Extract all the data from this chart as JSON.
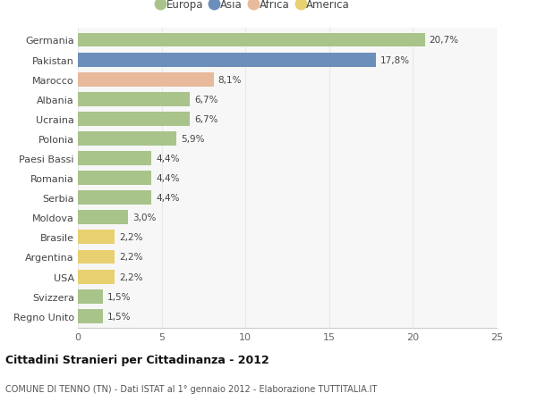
{
  "countries": [
    "Germania",
    "Pakistan",
    "Marocco",
    "Albania",
    "Ucraina",
    "Polonia",
    "Paesi Bassi",
    "Romania",
    "Serbia",
    "Moldova",
    "Brasile",
    "Argentina",
    "USA",
    "Svizzera",
    "Regno Unito"
  ],
  "values": [
    20.7,
    17.8,
    8.1,
    6.7,
    6.7,
    5.9,
    4.4,
    4.4,
    4.4,
    3.0,
    2.2,
    2.2,
    2.2,
    1.5,
    1.5
  ],
  "labels": [
    "20,7%",
    "17,8%",
    "8,1%",
    "6,7%",
    "6,7%",
    "5,9%",
    "4,4%",
    "4,4%",
    "4,4%",
    "3,0%",
    "2,2%",
    "2,2%",
    "2,2%",
    "1,5%",
    "1,5%"
  ],
  "continents": [
    "Europa",
    "Asia",
    "Africa",
    "Europa",
    "Europa",
    "Europa",
    "Europa",
    "Europa",
    "Europa",
    "Europa",
    "America",
    "America",
    "America",
    "Europa",
    "Europa"
  ],
  "colors": {
    "Europa": "#a8c48a",
    "Asia": "#6b8fba",
    "Africa": "#e8b99a",
    "America": "#e8d070"
  },
  "xlim": [
    0,
    25
  ],
  "xticks": [
    0,
    5,
    10,
    15,
    20,
    25
  ],
  "title": "Cittadini Stranieri per Cittadinanza - 2012",
  "subtitle": "COMUNE DI TENNO (TN) - Dati ISTAT al 1° gennaio 2012 - Elaborazione TUTTITALIA.IT",
  "background_color": "#ffffff",
  "plot_bg_color": "#f7f7f7",
  "grid_color": "#e8e8e8",
  "bar_height": 0.72
}
